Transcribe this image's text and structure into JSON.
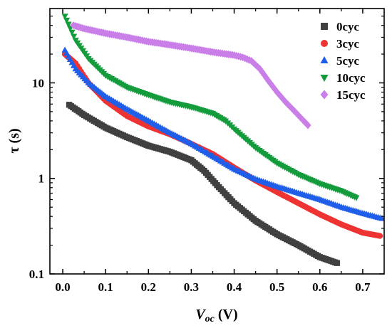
{
  "chart_data": {
    "type": "scatter",
    "title": "",
    "xlabel": {
      "main": "V",
      "sub": "oc",
      "unit": " (V)"
    },
    "ylabel": "τ (s)",
    "xlim": [
      -0.03,
      0.75
    ],
    "ylim": [
      0.1,
      60
    ],
    "yscale": "log",
    "x_ticks": [
      0.0,
      0.1,
      0.2,
      0.3,
      0.4,
      0.5,
      0.6,
      0.7
    ],
    "x_tick_labels": [
      "0.0",
      "0.1",
      "0.2",
      "0.3",
      "0.4",
      "0.5",
      "0.6",
      "0.7"
    ],
    "y_ticks": [
      0.1,
      1,
      10
    ],
    "y_tick_labels": [
      "0.1",
      "1",
      "10"
    ],
    "grid": false,
    "legend_position": "top-right",
    "series": [
      {
        "name": "0cyc",
        "marker": "square",
        "color": "#404040",
        "points": [
          [
            0.015,
            5.9
          ],
          [
            0.05,
            4.6
          ],
          [
            0.1,
            3.4
          ],
          [
            0.15,
            2.7
          ],
          [
            0.2,
            2.2
          ],
          [
            0.25,
            1.9
          ],
          [
            0.3,
            1.55
          ],
          [
            0.33,
            1.2
          ],
          [
            0.36,
            0.85
          ],
          [
            0.4,
            0.55
          ],
          [
            0.45,
            0.36
          ],
          [
            0.5,
            0.26
          ],
          [
            0.55,
            0.2
          ],
          [
            0.6,
            0.15
          ],
          [
            0.64,
            0.13
          ]
        ]
      },
      {
        "name": "3cyc",
        "marker": "circle",
        "color": "#ee3333",
        "points": [
          [
            0.005,
            20
          ],
          [
            0.03,
            16
          ],
          [
            0.06,
            10
          ],
          [
            0.1,
            6.5
          ],
          [
            0.15,
            4.5
          ],
          [
            0.2,
            3.5
          ],
          [
            0.25,
            2.9
          ],
          [
            0.3,
            2.3
          ],
          [
            0.35,
            1.8
          ],
          [
            0.4,
            1.3
          ],
          [
            0.45,
            0.95
          ],
          [
            0.5,
            0.72
          ],
          [
            0.55,
            0.55
          ],
          [
            0.6,
            0.42
          ],
          [
            0.65,
            0.33
          ],
          [
            0.7,
            0.27
          ],
          [
            0.74,
            0.25
          ]
        ]
      },
      {
        "name": "5cyc",
        "marker": "triangle-up",
        "color": "#1f5ee8",
        "points": [
          [
            0.005,
            22
          ],
          [
            0.03,
            14
          ],
          [
            0.06,
            10
          ],
          [
            0.1,
            7.2
          ],
          [
            0.15,
            5.3
          ],
          [
            0.2,
            4.0
          ],
          [
            0.25,
            3.0
          ],
          [
            0.3,
            2.3
          ],
          [
            0.35,
            1.7
          ],
          [
            0.4,
            1.25
          ],
          [
            0.45,
            0.98
          ],
          [
            0.5,
            0.82
          ],
          [
            0.55,
            0.7
          ],
          [
            0.6,
            0.6
          ],
          [
            0.65,
            0.5
          ],
          [
            0.7,
            0.43
          ],
          [
            0.745,
            0.38
          ]
        ]
      },
      {
        "name": "10cyc",
        "marker": "triangle-down",
        "color": "#149b3c",
        "points": [
          [
            0.005,
            50
          ],
          [
            0.03,
            28
          ],
          [
            0.06,
            18
          ],
          [
            0.1,
            12
          ],
          [
            0.15,
            9
          ],
          [
            0.2,
            7.5
          ],
          [
            0.25,
            6.3
          ],
          [
            0.3,
            5.6
          ],
          [
            0.35,
            4.8
          ],
          [
            0.38,
            4.0
          ],
          [
            0.4,
            3.3
          ],
          [
            0.45,
            2.1
          ],
          [
            0.5,
            1.45
          ],
          [
            0.55,
            1.1
          ],
          [
            0.6,
            0.88
          ],
          [
            0.65,
            0.74
          ],
          [
            0.685,
            0.63
          ]
        ]
      },
      {
        "name": "15cyc",
        "marker": "diamond",
        "color": "#c97ee8",
        "points": [
          [
            0.025,
            40
          ],
          [
            0.05,
            37
          ],
          [
            0.1,
            33
          ],
          [
            0.15,
            30
          ],
          [
            0.2,
            27
          ],
          [
            0.25,
            25
          ],
          [
            0.3,
            23
          ],
          [
            0.35,
            21
          ],
          [
            0.4,
            19.5
          ],
          [
            0.42,
            18.5
          ],
          [
            0.44,
            17
          ],
          [
            0.46,
            14
          ],
          [
            0.48,
            10.5
          ],
          [
            0.5,
            8
          ],
          [
            0.52,
            6.3
          ],
          [
            0.54,
            5.1
          ],
          [
            0.56,
            4.1
          ],
          [
            0.572,
            3.6
          ]
        ]
      }
    ]
  }
}
